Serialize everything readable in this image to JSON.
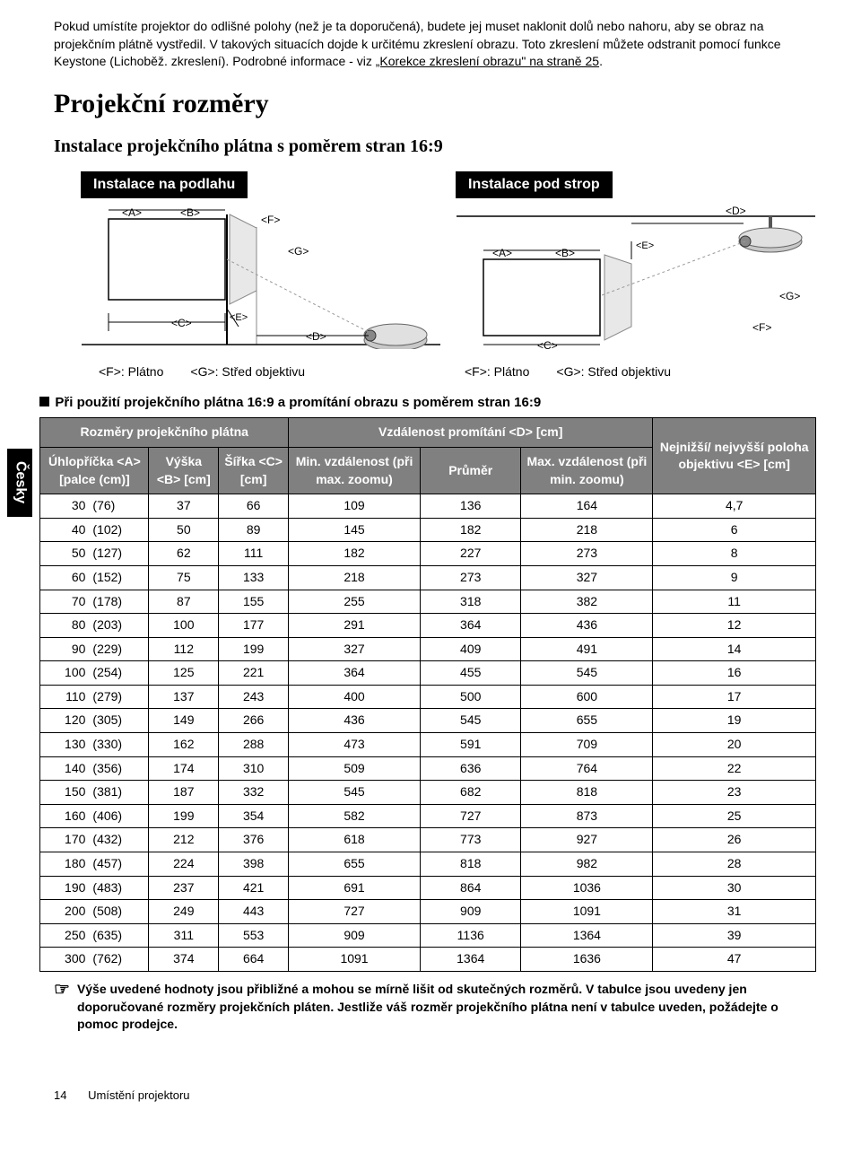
{
  "intro": {
    "p1_a": "Pokud umístíte projektor do odlišné polohy (než je ta doporučená), budete jej muset naklonit dolů nebo nahoru, aby se obraz na projekčním plátně vystředil. V takových situacích dojde k určitému zkreslení obrazu. Toto zkreslení můžete odstranit pomocí funkce Keystone (Lichoběž. zkreslení). Podrobné informace - viz ",
    "p1_link": "„Korekce zkreslení obrazu\" na straně 25",
    "p1_b": "."
  },
  "heading": "Projekční rozměry",
  "subheading": "Instalace projekčního plátna s poměrem stran 16:9",
  "install": {
    "floor": "Instalace na podlahu",
    "ceiling": "Instalace pod strop"
  },
  "diagram": {
    "labels": {
      "A": "<A>",
      "B": "<B>",
      "C": "<C>",
      "D": "<D>",
      "E": "<E>",
      "F": "<F>",
      "G": "<G>"
    },
    "gray": "#d9d9d9",
    "line": "#000000",
    "proj_gray": "#b0b0b0"
  },
  "caption": {
    "f": "<F>: Plátno",
    "g": "<G>: Střed objektivu"
  },
  "sidetab": "Česky",
  "table": {
    "title": "Při použití projekčního plátna 16:9 a promítání obrazu s poměrem stran 16:9",
    "head1": "Rozměry projekčního plátna",
    "head2": "Vzdálenost promítání <D> [cm]",
    "head3": "Nejnižší/ nejvyšší poloha objektivu <E> [cm]",
    "colA": "Úhlopříčka <A> [palce (cm)]",
    "colB": "Výška <B> [cm]",
    "colC": "Šířka <C> [cm]",
    "colD1": "Min. vzdálenost (při max. zoomu)",
    "colD2": "Průměr",
    "colD3": "Max. vzdálenost (při min. zoomu)",
    "rows": [
      {
        "in": "30",
        "cm": "(76)",
        "b": "37",
        "c": "66",
        "d1": "109",
        "d2": "136",
        "d3": "164",
        "e": "4,7"
      },
      {
        "in": "40",
        "cm": "(102)",
        "b": "50",
        "c": "89",
        "d1": "145",
        "d2": "182",
        "d3": "218",
        "e": "6"
      },
      {
        "in": "50",
        "cm": "(127)",
        "b": "62",
        "c": "111",
        "d1": "182",
        "d2": "227",
        "d3": "273",
        "e": "8"
      },
      {
        "in": "60",
        "cm": "(152)",
        "b": "75",
        "c": "133",
        "d1": "218",
        "d2": "273",
        "d3": "327",
        "e": "9"
      },
      {
        "in": "70",
        "cm": "(178)",
        "b": "87",
        "c": "155",
        "d1": "255",
        "d2": "318",
        "d3": "382",
        "e": "11"
      },
      {
        "in": "80",
        "cm": "(203)",
        "b": "100",
        "c": "177",
        "d1": "291",
        "d2": "364",
        "d3": "436",
        "e": "12"
      },
      {
        "in": "90",
        "cm": "(229)",
        "b": "112",
        "c": "199",
        "d1": "327",
        "d2": "409",
        "d3": "491",
        "e": "14"
      },
      {
        "in": "100",
        "cm": "(254)",
        "b": "125",
        "c": "221",
        "d1": "364",
        "d2": "455",
        "d3": "545",
        "e": "16"
      },
      {
        "in": "110",
        "cm": "(279)",
        "b": "137",
        "c": "243",
        "d1": "400",
        "d2": "500",
        "d3": "600",
        "e": "17"
      },
      {
        "in": "120",
        "cm": "(305)",
        "b": "149",
        "c": "266",
        "d1": "436",
        "d2": "545",
        "d3": "655",
        "e": "19"
      },
      {
        "in": "130",
        "cm": "(330)",
        "b": "162",
        "c": "288",
        "d1": "473",
        "d2": "591",
        "d3": "709",
        "e": "20"
      },
      {
        "in": "140",
        "cm": "(356)",
        "b": "174",
        "c": "310",
        "d1": "509",
        "d2": "636",
        "d3": "764",
        "e": "22"
      },
      {
        "in": "150",
        "cm": "(381)",
        "b": "187",
        "c": "332",
        "d1": "545",
        "d2": "682",
        "d3": "818",
        "e": "23"
      },
      {
        "in": "160",
        "cm": "(406)",
        "b": "199",
        "c": "354",
        "d1": "582",
        "d2": "727",
        "d3": "873",
        "e": "25"
      },
      {
        "in": "170",
        "cm": "(432)",
        "b": "212",
        "c": "376",
        "d1": "618",
        "d2": "773",
        "d3": "927",
        "e": "26"
      },
      {
        "in": "180",
        "cm": "(457)",
        "b": "224",
        "c": "398",
        "d1": "655",
        "d2": "818",
        "d3": "982",
        "e": "28"
      },
      {
        "in": "190",
        "cm": "(483)",
        "b": "237",
        "c": "421",
        "d1": "691",
        "d2": "864",
        "d3": "1036",
        "e": "30"
      },
      {
        "in": "200",
        "cm": "(508)",
        "b": "249",
        "c": "443",
        "d1": "727",
        "d2": "909",
        "d3": "1091",
        "e": "31"
      },
      {
        "in": "250",
        "cm": "(635)",
        "b": "311",
        "c": "553",
        "d1": "909",
        "d2": "1136",
        "d3": "1364",
        "e": "39"
      },
      {
        "in": "300",
        "cm": "(762)",
        "b": "374",
        "c": "664",
        "d1": "1091",
        "d2": "1364",
        "d3": "1636",
        "e": "47"
      }
    ]
  },
  "footnote": "Výše uvedené hodnoty jsou přibližné a mohou se mírně lišit od skutečných rozměrů. V tabulce jsou uvedeny jen doporučované rozměry projekčních pláten. Jestliže váš rozměr projekčního plátna není v tabulce uveden, požádejte o pomoc prodejce.",
  "footer": {
    "page": "14",
    "section": "Umístění projektoru"
  }
}
